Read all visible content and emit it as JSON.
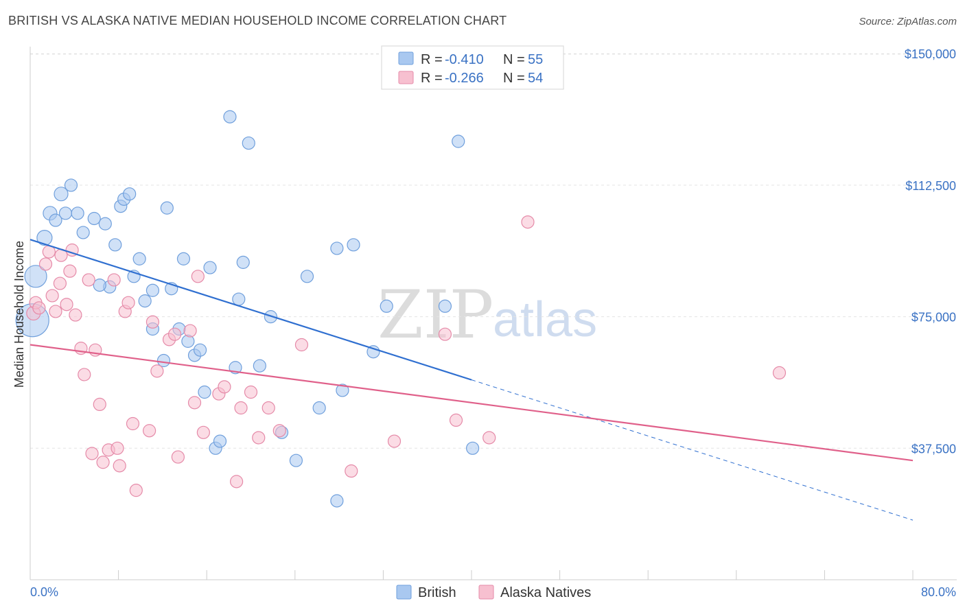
{
  "title": "BRITISH VS ALASKA NATIVE MEDIAN HOUSEHOLD INCOME CORRELATION CHART",
  "source": "Source: ZipAtlas.com",
  "watermark": {
    "zip": "ZIP",
    "atlas": "atlas"
  },
  "legend_box": {
    "rows": [
      {
        "r_label": "R = ",
        "r_value": "-0.410",
        "n_label": "N = ",
        "n_value": "55",
        "color": "#a9c8f0",
        "stroke": "#6f9fdc"
      },
      {
        "r_label": "R = ",
        "r_value": "-0.266",
        "n_label": "N = ",
        "n_value": "54",
        "color": "#f7c0d0",
        "stroke": "#e58aa8"
      }
    ]
  },
  "chart_data": {
    "type": "scatter",
    "title": "BRITISH VS ALASKA NATIVE MEDIAN HOUSEHOLD INCOME CORRELATION CHART",
    "xlabel": "",
    "ylabel": "Median Household Income",
    "xlim": [
      0,
      80
    ],
    "ylim": [
      0,
      152000
    ],
    "x_tick_labels": [
      "0.0%",
      "80.0%"
    ],
    "y_ticks": [
      37500,
      75000,
      112500,
      150000
    ],
    "y_tick_labels": [
      "$37,500",
      "$75,000",
      "$112,500",
      "$150,000"
    ],
    "grid": true,
    "legend_position": "bottom-center",
    "series": [
      {
        "name": "British",
        "color": "#a9c8f0",
        "stroke": "#6f9fdc",
        "line_color": "#2f6fd0",
        "trend": {
          "x0": 0,
          "y0": 97000,
          "x1": 40,
          "y1": 57000,
          "dash_x1": 80,
          "dash_y1": 17000
        },
        "points": [
          [
            0.2,
            74000,
            24
          ],
          [
            0.5,
            86500,
            16
          ],
          [
            1.3,
            97500,
            11
          ],
          [
            1.8,
            104500,
            10
          ],
          [
            2.3,
            102500,
            9
          ],
          [
            2.8,
            110000,
            10
          ],
          [
            3.2,
            104500,
            9
          ],
          [
            3.7,
            112500,
            9
          ],
          [
            4.3,
            104500,
            9
          ],
          [
            4.8,
            99000,
            9
          ],
          [
            5.8,
            103000,
            9
          ],
          [
            6.8,
            101500,
            9
          ],
          [
            7.7,
            95500,
            9
          ],
          [
            7.2,
            83500,
            9
          ],
          [
            6.3,
            84000,
            9
          ],
          [
            8.2,
            106500,
            9
          ],
          [
            8.5,
            108500,
            9
          ],
          [
            9.0,
            110000,
            9
          ],
          [
            9.4,
            86500,
            9
          ],
          [
            9.9,
            91500,
            9
          ],
          [
            10.4,
            79500,
            9
          ],
          [
            11.1,
            82500,
            9
          ],
          [
            11.1,
            71500,
            9
          ],
          [
            12.1,
            62500,
            9
          ],
          [
            12.4,
            106000,
            9
          ],
          [
            12.8,
            83000,
            9
          ],
          [
            13.5,
            71500,
            9
          ],
          [
            13.9,
            91500,
            9
          ],
          [
            14.3,
            68000,
            9
          ],
          [
            14.9,
            64000,
            9
          ],
          [
            15.4,
            65500,
            9
          ],
          [
            15.8,
            53500,
            9
          ],
          [
            16.3,
            89000,
            9
          ],
          [
            16.8,
            37500,
            9
          ],
          [
            17.2,
            39500,
            9
          ],
          [
            18.1,
            132000,
            9
          ],
          [
            18.6,
            60500,
            9
          ],
          [
            18.9,
            80000,
            9
          ],
          [
            19.3,
            90500,
            9
          ],
          [
            19.8,
            124500,
            9
          ],
          [
            20.8,
            61000,
            9
          ],
          [
            21.8,
            75000,
            9
          ],
          [
            22.8,
            42000,
            9
          ],
          [
            24.1,
            34000,
            9
          ],
          [
            25.1,
            86500,
            9
          ],
          [
            26.2,
            49000,
            9
          ],
          [
            27.8,
            94500,
            9
          ],
          [
            27.8,
            22500,
            9
          ],
          [
            28.3,
            54000,
            9
          ],
          [
            29.3,
            95500,
            9
          ],
          [
            31.1,
            65000,
            9
          ],
          [
            32.3,
            78000,
            9
          ],
          [
            37.6,
            78000,
            9
          ],
          [
            38.8,
            125000,
            9
          ],
          [
            40.1,
            37500,
            9
          ]
        ]
      },
      {
        "name": "Alaska Natives",
        "color": "#f7c0d0",
        "stroke": "#e58aa8",
        "line_color": "#e0608a",
        "trend": {
          "x0": 0,
          "y0": 67000,
          "x1": 80,
          "y1": 34000
        },
        "points": [
          [
            0.3,
            76000,
            10
          ],
          [
            0.5,
            79000,
            9
          ],
          [
            0.8,
            77500,
            9
          ],
          [
            1.4,
            90000,
            9
          ],
          [
            1.7,
            93500,
            9
          ],
          [
            2.0,
            81000,
            9
          ],
          [
            2.3,
            76500,
            9
          ],
          [
            2.7,
            84500,
            9
          ],
          [
            2.8,
            92500,
            9
          ],
          [
            3.3,
            78500,
            9
          ],
          [
            3.6,
            88000,
            9
          ],
          [
            3.8,
            94000,
            9
          ],
          [
            4.1,
            75500,
            9
          ],
          [
            4.6,
            66000,
            9
          ],
          [
            4.9,
            58500,
            9
          ],
          [
            5.3,
            85500,
            9
          ],
          [
            5.6,
            36000,
            9
          ],
          [
            5.9,
            65500,
            9
          ],
          [
            6.3,
            50000,
            9
          ],
          [
            6.6,
            33500,
            9
          ],
          [
            7.1,
            37000,
            9
          ],
          [
            7.6,
            85500,
            9
          ],
          [
            7.9,
            37500,
            9
          ],
          [
            8.1,
            32500,
            9
          ],
          [
            8.6,
            76500,
            9
          ],
          [
            8.9,
            79000,
            9
          ],
          [
            9.3,
            44500,
            9
          ],
          [
            9.6,
            25500,
            9
          ],
          [
            10.8,
            42500,
            9
          ],
          [
            11.1,
            73500,
            9
          ],
          [
            11.5,
            59500,
            9
          ],
          [
            12.6,
            68500,
            9
          ],
          [
            13.1,
            70000,
            9
          ],
          [
            13.4,
            35000,
            9
          ],
          [
            14.5,
            71000,
            9
          ],
          [
            14.9,
            50500,
            9
          ],
          [
            15.2,
            86500,
            9
          ],
          [
            15.7,
            42000,
            9
          ],
          [
            17.1,
            53000,
            9
          ],
          [
            17.6,
            55000,
            9
          ],
          [
            18.7,
            28000,
            9
          ],
          [
            19.1,
            49000,
            9
          ],
          [
            20.0,
            53500,
            9
          ],
          [
            20.7,
            40500,
            9
          ],
          [
            21.6,
            49000,
            9
          ],
          [
            22.6,
            42500,
            9
          ],
          [
            24.6,
            67000,
            9
          ],
          [
            29.1,
            31000,
            9
          ],
          [
            33.0,
            39500,
            9
          ],
          [
            37.6,
            70000,
            9
          ],
          [
            38.6,
            45500,
            9
          ],
          [
            41.6,
            40500,
            9
          ],
          [
            45.1,
            102000,
            9
          ],
          [
            67.9,
            59000,
            9
          ]
        ]
      }
    ]
  },
  "bottom_legend": [
    {
      "label": "British",
      "color": "#a9c8f0",
      "stroke": "#6f9fdc"
    },
    {
      "label": "Alaska Natives",
      "color": "#f7c0d0",
      "stroke": "#e58aa8"
    }
  ]
}
